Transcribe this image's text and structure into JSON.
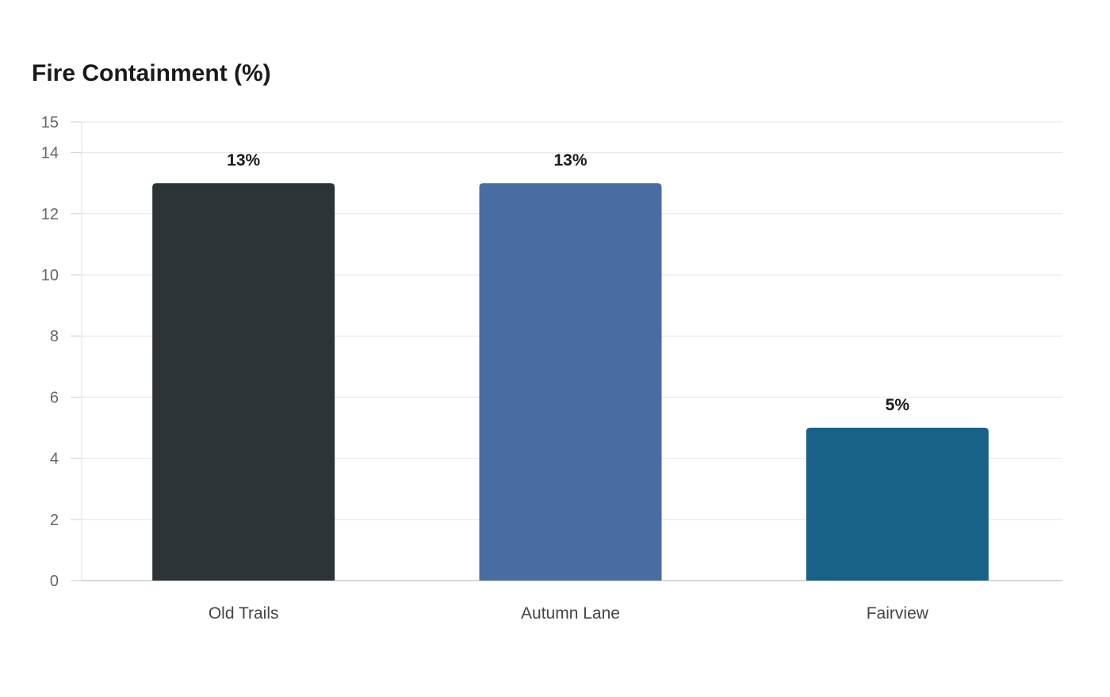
{
  "chart_data": {
    "type": "bar",
    "title": "Fire Containment (%)",
    "xlabel": "",
    "ylabel": "",
    "categories": [
      "Old Trails",
      "Autumn Lane",
      "Fairview"
    ],
    "values": [
      13,
      13,
      5
    ],
    "data_labels": [
      "13%",
      "13%",
      "5%"
    ],
    "colors": [
      "#2d3436",
      "#4a6da1",
      "#186187"
    ],
    "ylim": [
      0,
      15
    ],
    "yticks": [
      0,
      2,
      4,
      6,
      8,
      10,
      12,
      14,
      15
    ],
    "grid": true,
    "legend": "none"
  }
}
